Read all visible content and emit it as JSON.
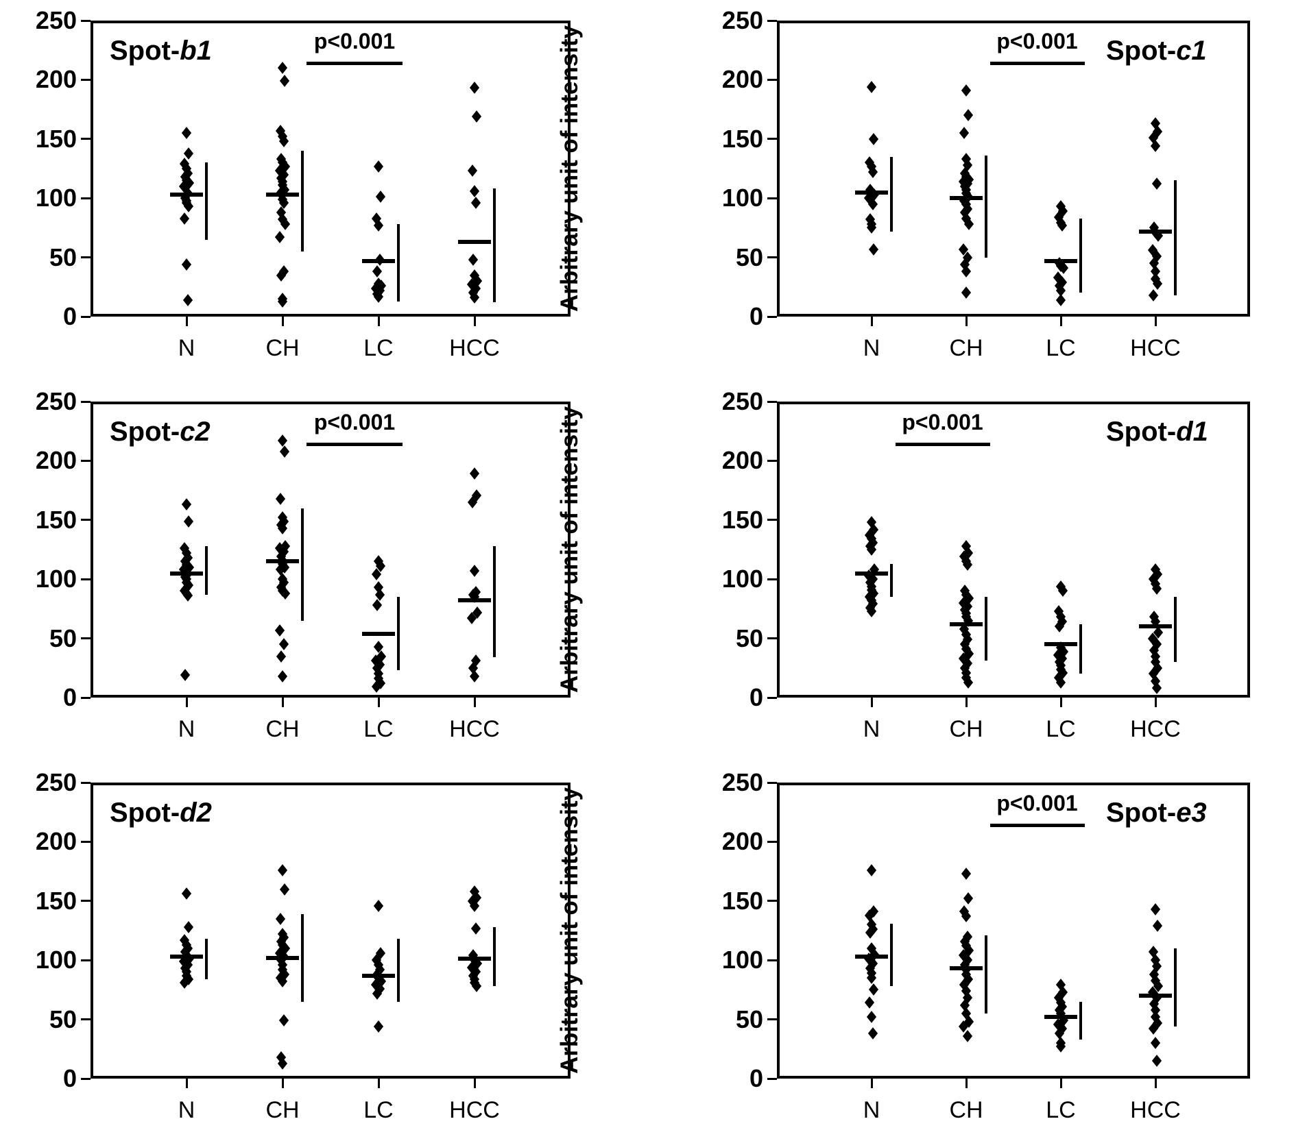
{
  "figure": {
    "y_axis_label": "Arbitrary unit of intensity",
    "y_ticks": [
      0,
      50,
      100,
      150,
      200,
      250
    ],
    "y_max": 250,
    "categories": [
      "N",
      "CH",
      "LC",
      "HCC"
    ]
  },
  "chart_data": [
    {
      "type": "scatter",
      "title": "Spot-b1",
      "title_prefix": "Spot-",
      "title_suffix": "b1",
      "title_position": "left",
      "xlabel": "",
      "ylabel": "Arbitrary unit of intensity",
      "ylim": [
        0,
        250
      ],
      "categories": [
        "N",
        "CH",
        "LC",
        "HCC"
      ],
      "significance": {
        "label": "p<0.001",
        "between": [
          "CH",
          "LC"
        ]
      },
      "groups": [
        {
          "name": "N",
          "median": 103,
          "range": [
            65,
            130
          ],
          "values": [
            155,
            138,
            129,
            125,
            121,
            118,
            115,
            113,
            110,
            104,
            100,
            98,
            96,
            93,
            83,
            44,
            14
          ]
        },
        {
          "name": "CH",
          "median": 103,
          "range": [
            55,
            140
          ],
          "values": [
            210,
            199,
            157,
            152,
            148,
            133,
            130,
            127,
            123,
            120,
            117,
            114,
            111,
            107,
            104,
            99,
            96,
            88,
            82,
            78,
            67,
            38,
            35,
            15,
            13
          ]
        },
        {
          "name": "LC",
          "median": 47,
          "range": [
            13,
            78
          ],
          "values": [
            127,
            101,
            83,
            77,
            48,
            38,
            28,
            26,
            24,
            22,
            19,
            17
          ]
        },
        {
          "name": "HCC",
          "median": 63,
          "range": [
            12,
            108
          ],
          "values": [
            193,
            169,
            123,
            106,
            96,
            48,
            35,
            30,
            27,
            24,
            20,
            16
          ]
        }
      ]
    },
    {
      "type": "scatter",
      "title": "Spot-c1",
      "title_prefix": "Spot-",
      "title_suffix": "c1",
      "title_position": "right",
      "xlabel": "",
      "ylabel": "Arbitrary unit of intensity",
      "ylim": [
        0,
        250
      ],
      "categories": [
        "N",
        "CH",
        "LC",
        "HCC"
      ],
      "significance": {
        "label": "p<0.001",
        "between": [
          "CH",
          "LC"
        ]
      },
      "groups": [
        {
          "name": "N",
          "median": 105,
          "range": [
            72,
            135
          ],
          "values": [
            194,
            150,
            130,
            127,
            122,
            107,
            105,
            103,
            100,
            95,
            82,
            78,
            75,
            57
          ]
        },
        {
          "name": "CH",
          "median": 100,
          "range": [
            50,
            136
          ],
          "values": [
            191,
            170,
            155,
            133,
            128,
            121,
            118,
            116,
            114,
            112,
            110,
            107,
            104,
            101,
            98,
            95,
            91,
            88,
            83,
            78,
            57,
            50,
            44,
            38,
            20
          ]
        },
        {
          "name": "LC",
          "median": 47,
          "range": [
            20,
            83
          ],
          "values": [
            93,
            89,
            84,
            79,
            77,
            45,
            43,
            41,
            33,
            29,
            26,
            22,
            14
          ]
        },
        {
          "name": "HCC",
          "median": 72,
          "range": [
            18,
            115
          ],
          "values": [
            163,
            156,
            151,
            144,
            112,
            75,
            71,
            68,
            56,
            51,
            45,
            38,
            32,
            28,
            18
          ]
        }
      ]
    },
    {
      "type": "scatter",
      "title": "Spot-c2",
      "title_prefix": "Spot-",
      "title_suffix": "c2",
      "title_position": "left",
      "xlabel": "",
      "ylabel": "Arbitrary unit of intensity",
      "ylim": [
        0,
        250
      ],
      "categories": [
        "N",
        "CH",
        "LC",
        "HCC"
      ],
      "significance": {
        "label": "p<0.001",
        "between": [
          "CH",
          "LC"
        ]
      },
      "groups": [
        {
          "name": "N",
          "median": 105,
          "range": [
            87,
            128
          ],
          "values": [
            163,
            149,
            126,
            122,
            118,
            115,
            112,
            110,
            108,
            105,
            102,
            100,
            97,
            95,
            90,
            88,
            86,
            19
          ]
        },
        {
          "name": "CH",
          "median": 115,
          "range": [
            65,
            160
          ],
          "values": [
            217,
            208,
            168,
            152,
            149,
            146,
            143,
            128,
            126,
            123,
            119,
            116,
            113,
            110,
            108,
            100,
            97,
            93,
            90,
            88,
            57,
            45,
            35,
            18
          ]
        },
        {
          "name": "LC",
          "median": 54,
          "range": [
            23,
            85
          ],
          "values": [
            115,
            111,
            104,
            93,
            87,
            78,
            43,
            35,
            31,
            28,
            25,
            20,
            16,
            12,
            9
          ]
        },
        {
          "name": "HCC",
          "median": 82,
          "range": [
            34,
            128
          ],
          "values": [
            189,
            171,
            165,
            107,
            89,
            87,
            85,
            72,
            67,
            31,
            25,
            18
          ]
        }
      ]
    },
    {
      "type": "scatter",
      "title": "Spot-d1",
      "title_prefix": "Spot-",
      "title_suffix": "d1",
      "title_position": "right",
      "xlabel": "",
      "ylabel": "Arbitrary unit of intensity",
      "ylim": [
        0,
        250
      ],
      "categories": [
        "N",
        "CH",
        "LC",
        "HCC"
      ],
      "significance": {
        "label": "p<0.001",
        "between": [
          "N",
          "CH"
        ]
      },
      "groups": [
        {
          "name": "N",
          "median": 105,
          "range": [
            85,
            113
          ],
          "values": [
            148,
            142,
            137,
            134,
            131,
            128,
            125,
            108,
            103,
            100,
            97,
            94,
            91,
            88,
            85,
            82,
            79,
            76,
            73
          ]
        },
        {
          "name": "CH",
          "median": 62,
          "range": [
            31,
            85
          ],
          "values": [
            128,
            122,
            119,
            115,
            112,
            90,
            87,
            84,
            80,
            77,
            74,
            71,
            68,
            65,
            58,
            53,
            49,
            45,
            41,
            37,
            33,
            29,
            25,
            21,
            17,
            13
          ]
        },
        {
          "name": "LC",
          "median": 45,
          "range": [
            20,
            62
          ],
          "values": [
            94,
            90,
            73,
            68,
            64,
            60,
            42,
            39,
            36,
            33,
            30,
            27,
            24,
            21,
            17,
            13
          ]
        },
        {
          "name": "HCC",
          "median": 60,
          "range": [
            30,
            85
          ],
          "values": [
            108,
            104,
            100,
            96,
            92,
            68,
            64,
            55,
            50,
            45,
            40,
            35,
            30,
            25,
            20,
            14,
            8
          ]
        }
      ]
    },
    {
      "type": "scatter",
      "title": "Spot-d2",
      "title_prefix": "Spot-",
      "title_suffix": "d2",
      "title_position": "left",
      "xlabel": "",
      "ylabel": "Arbitrary unit of intensity",
      "ylim": [
        0,
        250
      ],
      "categories": [
        "N",
        "CH",
        "LC",
        "HCC"
      ],
      "significance": null,
      "groups": [
        {
          "name": "N",
          "median": 103,
          "range": [
            84,
            118
          ],
          "values": [
            156,
            128,
            117,
            113,
            110,
            107,
            104,
            101,
            99,
            96,
            93,
            90,
            87,
            84,
            81
          ]
        },
        {
          "name": "CH",
          "median": 102,
          "range": [
            65,
            139
          ],
          "values": [
            176,
            160,
            135,
            122,
            119,
            116,
            113,
            110,
            106,
            103,
            100,
            96,
            92,
            88,
            85,
            82,
            49,
            18,
            13
          ]
        },
        {
          "name": "LC",
          "median": 87,
          "range": [
            65,
            118
          ],
          "values": [
            146,
            106,
            100,
            96,
            92,
            88,
            85,
            82,
            79,
            76,
            72,
            44
          ]
        },
        {
          "name": "HCC",
          "median": 101,
          "range": [
            78,
            128
          ],
          "values": [
            158,
            153,
            150,
            146,
            127,
            104,
            100,
            97,
            94,
            90,
            87,
            84,
            81,
            78
          ]
        }
      ]
    },
    {
      "type": "scatter",
      "title": "Spot-e3",
      "title_prefix": "Spot-",
      "title_suffix": "e3",
      "title_position": "right",
      "xlabel": "",
      "ylabel": "Arbitrary unit of intensity",
      "ylim": [
        0,
        250
      ],
      "categories": [
        "N",
        "CH",
        "LC",
        "HCC"
      ],
      "significance": {
        "label": "p<0.001",
        "between": [
          "CH",
          "LC"
        ]
      },
      "groups": [
        {
          "name": "N",
          "median": 103,
          "range": [
            78,
            131
          ],
          "values": [
            176,
            141,
            138,
            130,
            126,
            123,
            110,
            105,
            101,
            97,
            93,
            89,
            85,
            75,
            64,
            52,
            38
          ]
        },
        {
          "name": "CH",
          "median": 93,
          "range": [
            55,
            121
          ],
          "values": [
            173,
            152,
            141,
            137,
            120,
            116,
            112,
            108,
            104,
            100,
            96,
            92,
            88,
            84,
            79,
            74,
            68,
            62,
            55,
            48,
            44,
            36
          ]
        },
        {
          "name": "LC",
          "median": 52,
          "range": [
            33,
            65
          ],
          "values": [
            79,
            73,
            68,
            64,
            61,
            58,
            55,
            49,
            46,
            42,
            38,
            30,
            27
          ]
        },
        {
          "name": "HCC",
          "median": 70,
          "range": [
            44,
            110
          ],
          "values": [
            143,
            129,
            107,
            100,
            95,
            88,
            83,
            78,
            73,
            68,
            63,
            58,
            52,
            47,
            42,
            30,
            15
          ]
        }
      ]
    }
  ]
}
